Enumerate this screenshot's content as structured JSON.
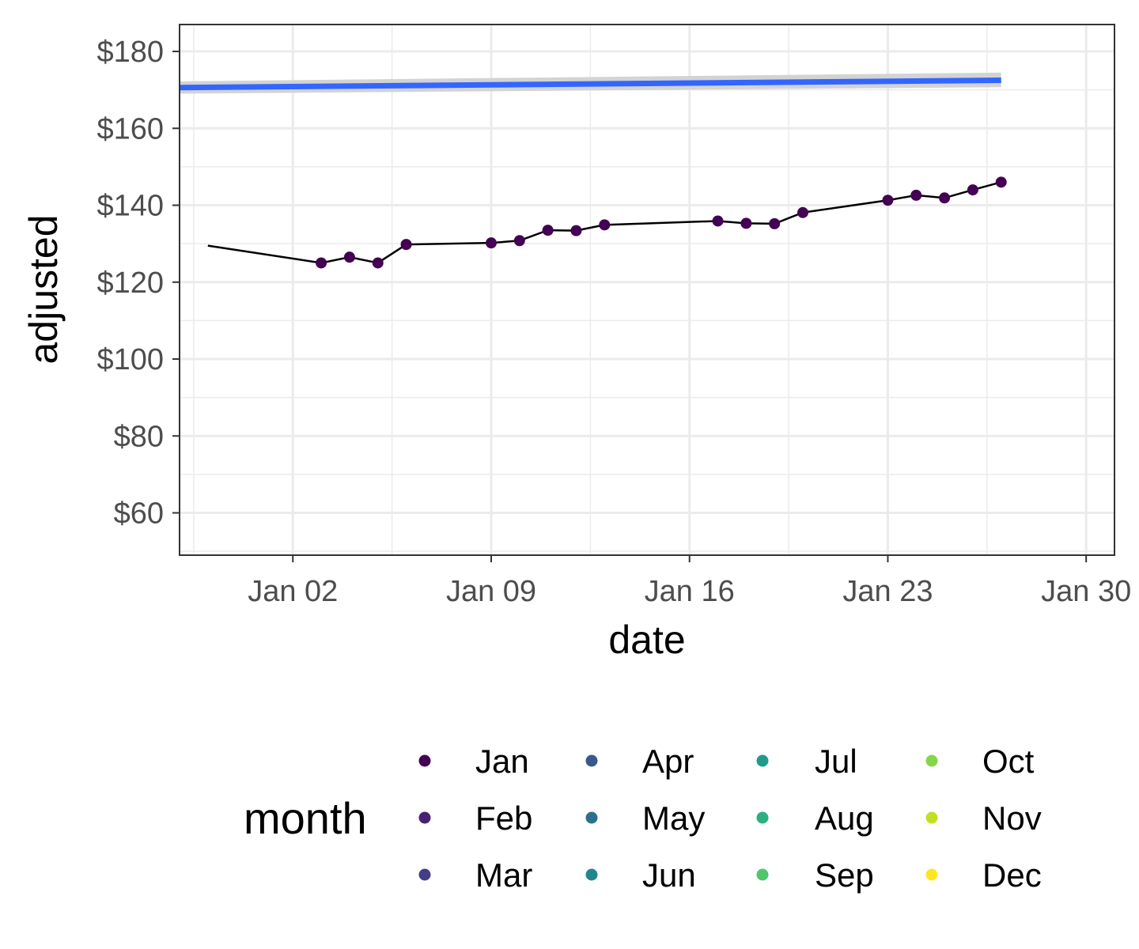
{
  "chart_data": {
    "type": "line",
    "xlabel": "date",
    "ylabel": "adjusted",
    "x_axis_kind": "date",
    "xlim": [
      "2021-12-29",
      "2022-01-31"
    ],
    "ylim": [
      49,
      187
    ],
    "x_ticks": [
      {
        "date": "2022-01-02",
        "label": "Jan 02"
      },
      {
        "date": "2022-01-09",
        "label": "Jan 09"
      },
      {
        "date": "2022-01-16",
        "label": "Jan 16"
      },
      {
        "date": "2022-01-23",
        "label": "Jan 23"
      },
      {
        "date": "2022-01-30",
        "label": "Jan 30"
      }
    ],
    "y_ticks": [
      {
        "value": 60,
        "label": "$60"
      },
      {
        "value": 80,
        "label": "$80"
      },
      {
        "value": 100,
        "label": "$100"
      },
      {
        "value": 120,
        "label": "$120"
      },
      {
        "value": 140,
        "label": "$140"
      },
      {
        "value": 160,
        "label": "$160"
      },
      {
        "value": 180,
        "label": "$180"
      }
    ],
    "grid": true,
    "series": [
      {
        "kind": "line+points",
        "color": "#440154",
        "points": [
          {
            "x": "2021-12-30",
            "y": 129.5
          },
          {
            "x": "2022-01-03",
            "y": 125.0
          },
          {
            "x": "2022-01-04",
            "y": 126.5
          },
          {
            "x": "2022-01-05",
            "y": 125.0
          },
          {
            "x": "2022-01-06",
            "y": 129.8
          },
          {
            "x": "2022-01-09",
            "y": 130.2
          },
          {
            "x": "2022-01-10",
            "y": 130.8
          },
          {
            "x": "2022-01-11",
            "y": 133.5
          },
          {
            "x": "2022-01-12",
            "y": 133.4
          },
          {
            "x": "2022-01-13",
            "y": 134.9
          },
          {
            "x": "2022-01-17",
            "y": 135.9
          },
          {
            "x": "2022-01-18",
            "y": 135.3
          },
          {
            "x": "2022-01-19",
            "y": 135.2
          },
          {
            "x": "2022-01-20",
            "y": 138.1
          },
          {
            "x": "2022-01-23",
            "y": 141.3
          },
          {
            "x": "2022-01-24",
            "y": 142.6
          },
          {
            "x": "2022-01-25",
            "y": 141.9
          },
          {
            "x": "2022-01-26",
            "y": 144.0
          },
          {
            "x": "2022-01-27",
            "y": 146.0
          }
        ]
      },
      {
        "kind": "trend",
        "color": "#3366FF",
        "band_color": "#d3d3d3",
        "points": [
          {
            "x": "2021-12-29",
            "y": 170.6,
            "ymin": 169.0,
            "ymax": 172.2
          },
          {
            "x": "2022-01-27",
            "y": 172.5,
            "ymin": 170.7,
            "ymax": 174.5
          }
        ]
      }
    ],
    "legend": {
      "title": "month",
      "position": "bottom",
      "entries": [
        {
          "label": "Jan",
          "color": "#440154"
        },
        {
          "label": "Feb",
          "color": "#482173"
        },
        {
          "label": "Mar",
          "color": "#433E85"
        },
        {
          "label": "Apr",
          "color": "#38598C"
        },
        {
          "label": "May",
          "color": "#2D708E"
        },
        {
          "label": "Jun",
          "color": "#25858E"
        },
        {
          "label": "Jul",
          "color": "#1E9B8A"
        },
        {
          "label": "Aug",
          "color": "#2BB07F"
        },
        {
          "label": "Sep",
          "color": "#51C56A"
        },
        {
          "label": "Oct",
          "color": "#85D54A"
        },
        {
          "label": "Nov",
          "color": "#C2DF23"
        },
        {
          "label": "Dec",
          "color": "#FDE725"
        }
      ]
    }
  }
}
